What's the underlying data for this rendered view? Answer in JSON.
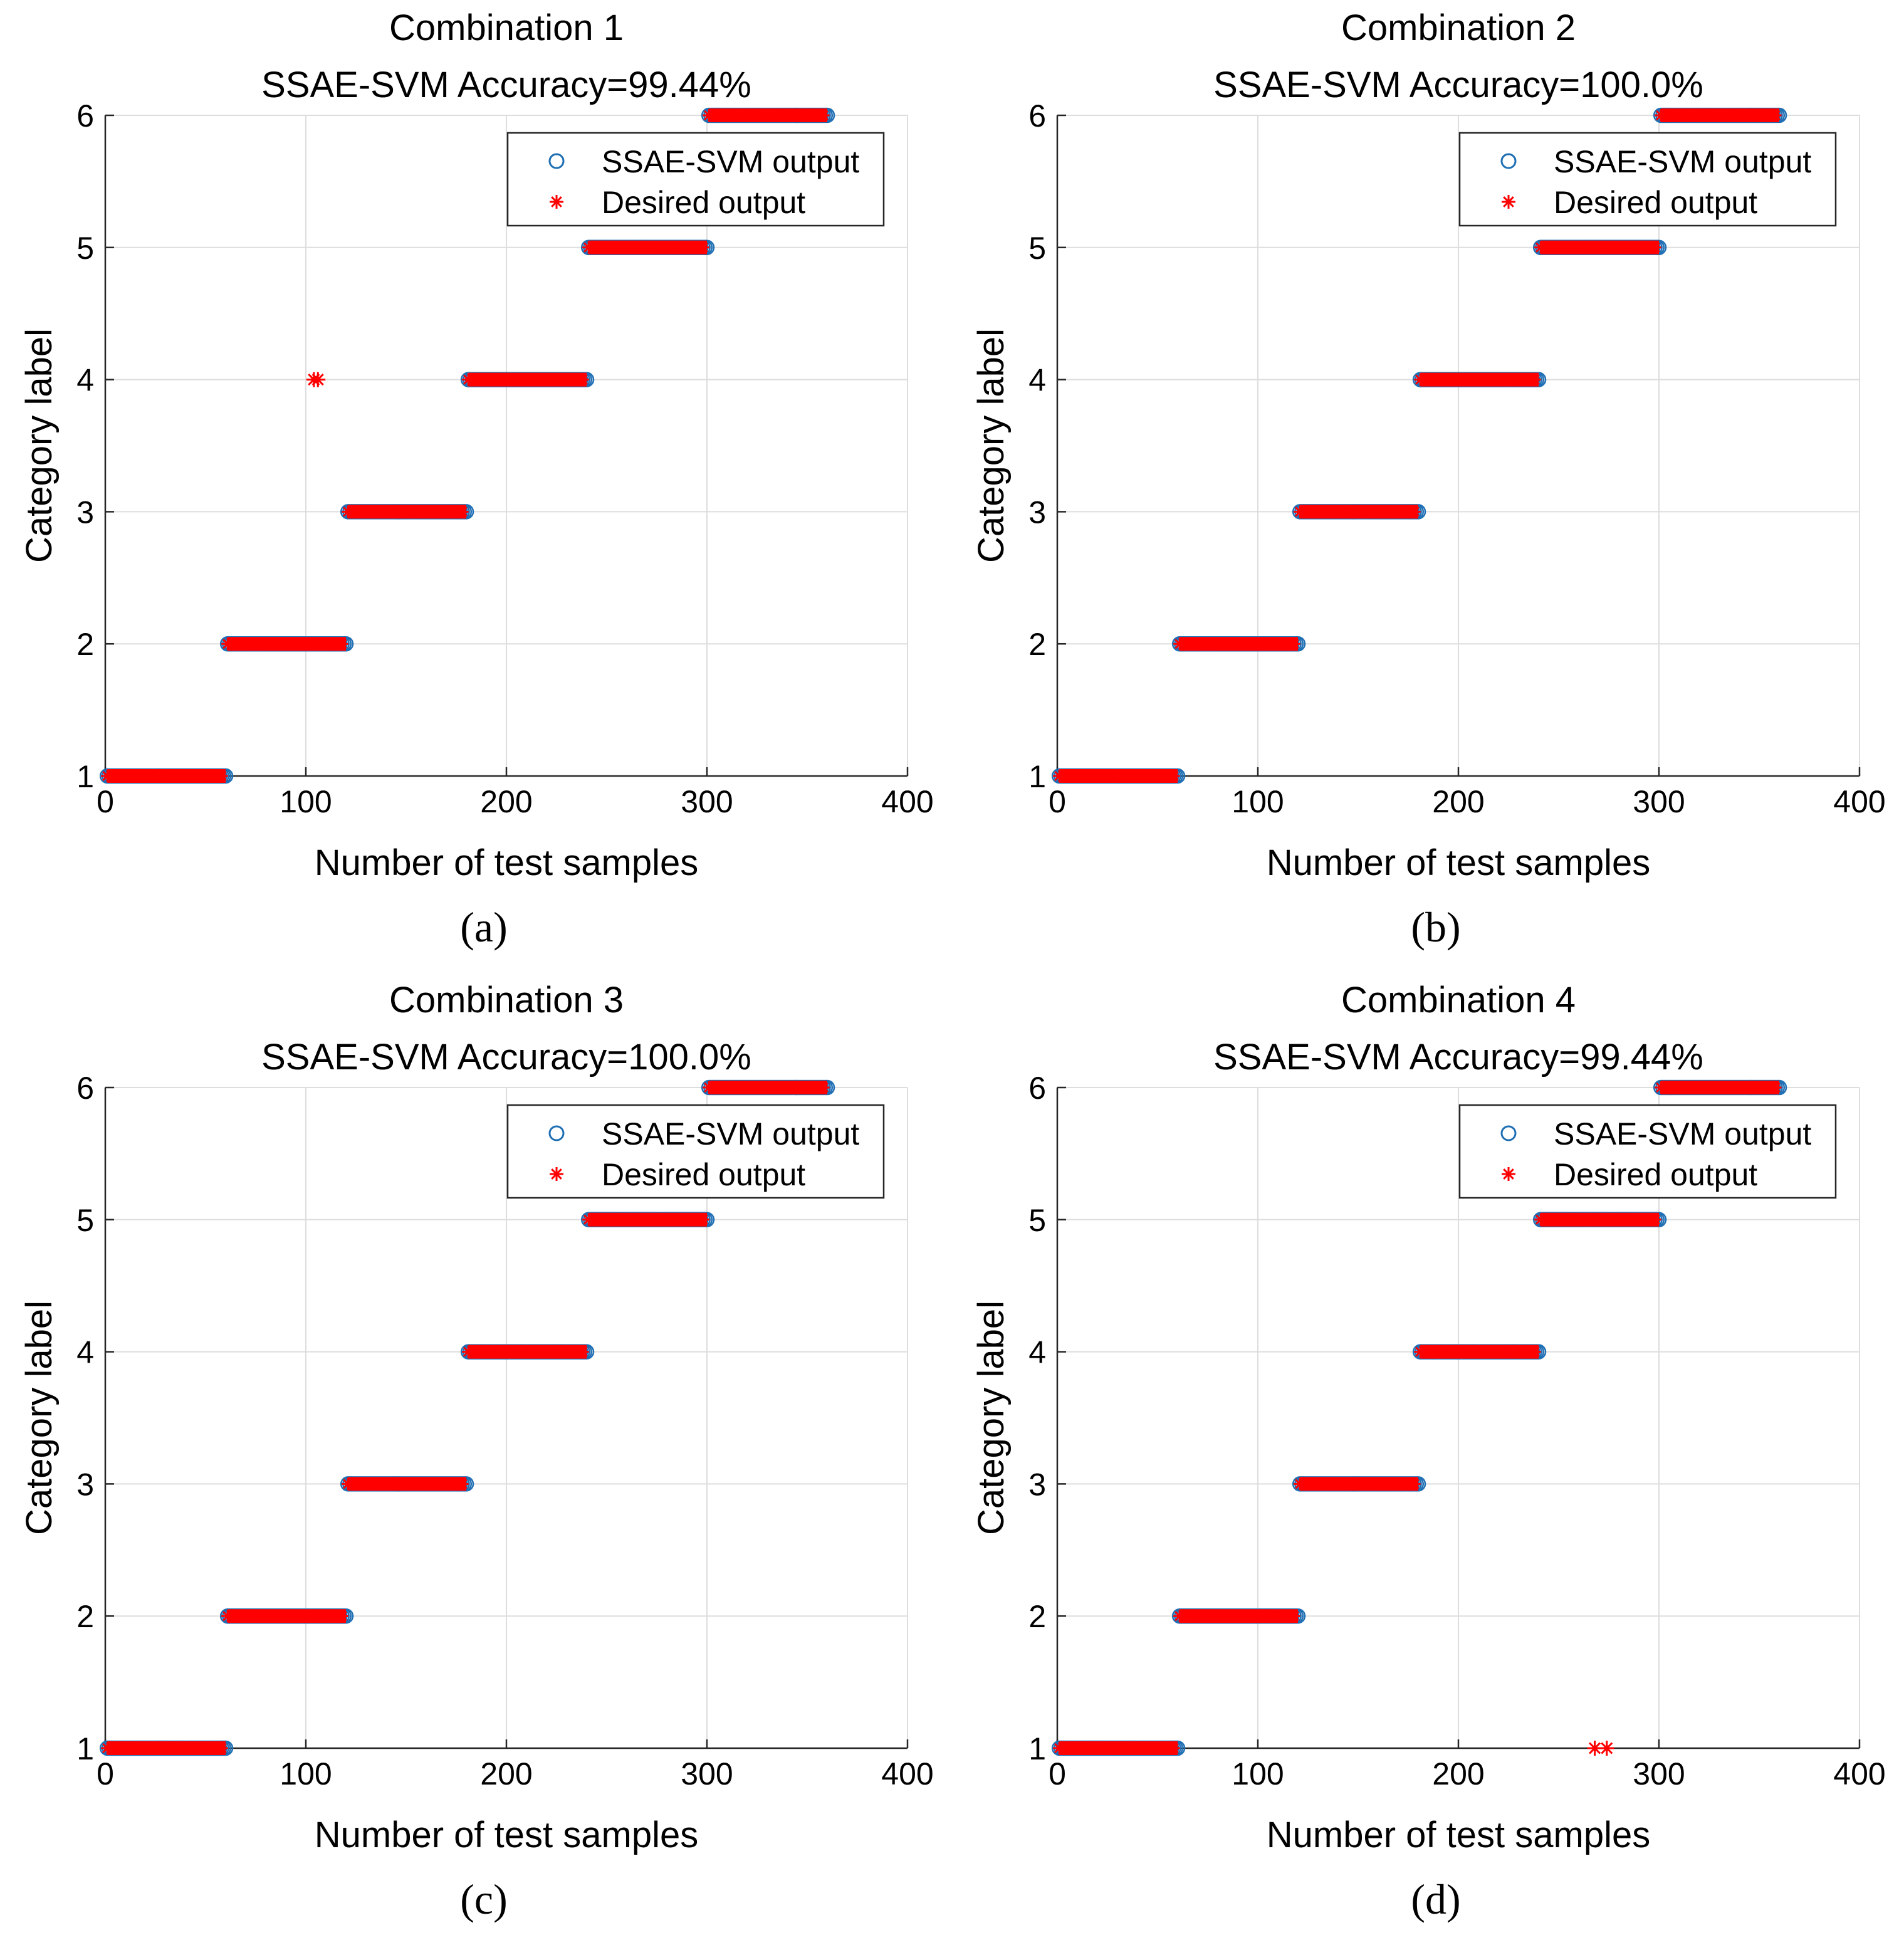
{
  "figure": {
    "legend": {
      "output_label": "SSAE-SVM output",
      "desired_label": "Desired output"
    },
    "colors": {
      "output": "#1f6fb4",
      "desired": "#ff0000",
      "grid": "#dddddd",
      "axis": "#262626"
    }
  },
  "chart_data": [
    {
      "type": "scatter",
      "title": "Combination 1",
      "subtitle": "SSAE-SVM Accuracy=99.44%",
      "caption": "(a)",
      "xlabel": "Number of test samples",
      "ylabel": "Category label",
      "xlim": [
        0,
        400
      ],
      "ylim": [
        1,
        6
      ],
      "xticks": [
        "0",
        "100",
        "200",
        "300",
        "400"
      ],
      "yticks": [
        "1",
        "2",
        "3",
        "4",
        "5",
        "6"
      ],
      "grid": true,
      "legend_position": "top-right",
      "series": [
        {
          "name": "SSAE-SVM output",
          "marker": "circle",
          "segments": [
            [
              1,
              60,
              1
            ],
            [
              61,
              120,
              2
            ],
            [
              121,
              180,
              3
            ],
            [
              181,
              240,
              4
            ],
            [
              241,
              300,
              5
            ],
            [
              301,
              360,
              6
            ]
          ]
        },
        {
          "name": "Desired output",
          "marker": "asterisk",
          "segments": [
            [
              1,
              60,
              1
            ],
            [
              61,
              120,
              2
            ],
            [
              121,
              180,
              3
            ],
            [
              181,
              240,
              4
            ],
            [
              241,
              300,
              5
            ],
            [
              301,
              360,
              6
            ]
          ],
          "extra_points": [
            [
              104,
              4
            ],
            [
              106,
              4
            ]
          ]
        }
      ]
    },
    {
      "type": "scatter",
      "title": "Combination 2",
      "subtitle": "SSAE-SVM Accuracy=100.0%",
      "caption": "(b)",
      "xlabel": "Number of test samples",
      "ylabel": "Category label",
      "xlim": [
        0,
        400
      ],
      "ylim": [
        1,
        6
      ],
      "xticks": [
        "0",
        "100",
        "200",
        "300",
        "400"
      ],
      "yticks": [
        "1",
        "2",
        "3",
        "4",
        "5",
        "6"
      ],
      "grid": true,
      "legend_position": "top-right",
      "series": [
        {
          "name": "SSAE-SVM output",
          "marker": "circle",
          "segments": [
            [
              1,
              60,
              1
            ],
            [
              61,
              120,
              2
            ],
            [
              121,
              180,
              3
            ],
            [
              181,
              240,
              4
            ],
            [
              241,
              300,
              5
            ],
            [
              301,
              360,
              6
            ]
          ]
        },
        {
          "name": "Desired output",
          "marker": "asterisk",
          "segments": [
            [
              1,
              60,
              1
            ],
            [
              61,
              120,
              2
            ],
            [
              121,
              180,
              3
            ],
            [
              181,
              240,
              4
            ],
            [
              241,
              300,
              5
            ],
            [
              301,
              360,
              6
            ]
          ],
          "extra_points": []
        }
      ]
    },
    {
      "type": "scatter",
      "title": "Combination 3",
      "subtitle": "SSAE-SVM Accuracy=100.0%",
      "caption": "(c)",
      "xlabel": "Number of test samples",
      "ylabel": "Category label",
      "xlim": [
        0,
        400
      ],
      "ylim": [
        1,
        6
      ],
      "xticks": [
        "0",
        "100",
        "200",
        "300",
        "400"
      ],
      "yticks": [
        "1",
        "2",
        "3",
        "4",
        "5",
        "6"
      ],
      "grid": true,
      "legend_position": "top-right",
      "series": [
        {
          "name": "SSAE-SVM output",
          "marker": "circle",
          "segments": [
            [
              1,
              60,
              1
            ],
            [
              61,
              120,
              2
            ],
            [
              121,
              180,
              3
            ],
            [
              181,
              240,
              4
            ],
            [
              241,
              300,
              5
            ],
            [
              301,
              360,
              6
            ]
          ]
        },
        {
          "name": "Desired output",
          "marker": "asterisk",
          "segments": [
            [
              1,
              60,
              1
            ],
            [
              61,
              120,
              2
            ],
            [
              121,
              180,
              3
            ],
            [
              181,
              240,
              4
            ],
            [
              241,
              300,
              5
            ],
            [
              301,
              360,
              6
            ]
          ],
          "extra_points": []
        }
      ]
    },
    {
      "type": "scatter",
      "title": "Combination 4",
      "subtitle": "SSAE-SVM Accuracy=99.44%",
      "caption": "(d)",
      "xlabel": "Number of test samples",
      "ylabel": "Category label",
      "xlim": [
        0,
        400
      ],
      "ylim": [
        1,
        6
      ],
      "xticks": [
        "0",
        "100",
        "200",
        "300",
        "400"
      ],
      "yticks": [
        "1",
        "2",
        "3",
        "4",
        "5",
        "6"
      ],
      "grid": true,
      "legend_position": "top-right",
      "series": [
        {
          "name": "SSAE-SVM output",
          "marker": "circle",
          "segments": [
            [
              1,
              60,
              1
            ],
            [
              61,
              120,
              2
            ],
            [
              121,
              180,
              3
            ],
            [
              181,
              240,
              4
            ],
            [
              241,
              300,
              5
            ],
            [
              301,
              360,
              6
            ]
          ]
        },
        {
          "name": "Desired output",
          "marker": "asterisk",
          "segments": [
            [
              1,
              60,
              1
            ],
            [
              61,
              120,
              2
            ],
            [
              121,
              180,
              3
            ],
            [
              181,
              240,
              4
            ],
            [
              241,
              300,
              5
            ],
            [
              301,
              360,
              6
            ]
          ],
          "extra_points": [
            [
              268,
              1
            ],
            [
              274,
              1
            ]
          ]
        }
      ]
    }
  ]
}
